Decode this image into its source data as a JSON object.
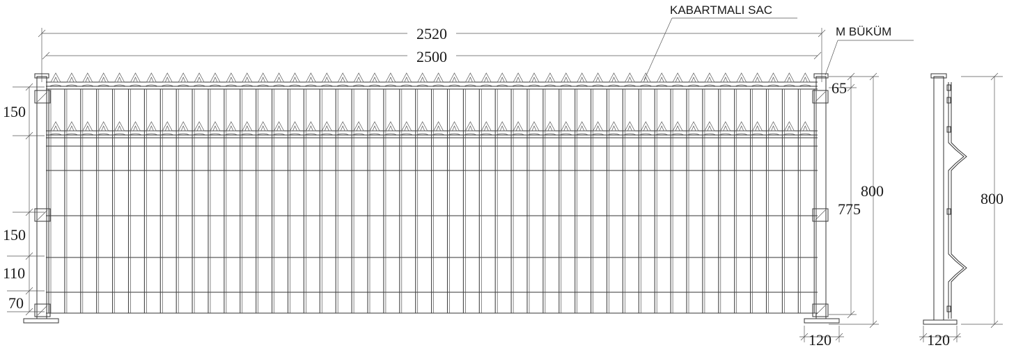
{
  "labels": {
    "embossed_sheet": "KABARTMALI SAC",
    "m_bend": "M BÜKÜM"
  },
  "dimensions": {
    "overall_width": "2520",
    "panel_width": "2500",
    "top_offset": "65",
    "total_height": "800",
    "panel_height": "775",
    "spike_band": "150",
    "mid_section": "150",
    "lower_section": "110",
    "bottom_section": "70",
    "base_width_front": "120",
    "side_height": "800",
    "base_width_side": "120"
  }
}
